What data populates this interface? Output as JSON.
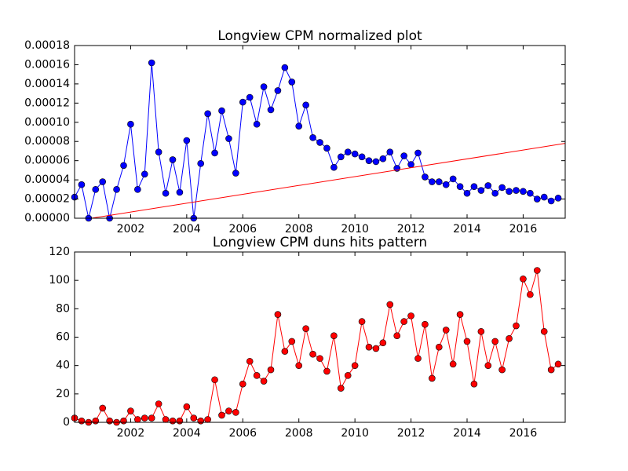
{
  "chart_data": [
    {
      "type": "line",
      "title": "Longview CPM normalized plot",
      "xlim": [
        2000,
        2017.5
      ],
      "xticks": [
        2002,
        2004,
        2006,
        2008,
        2010,
        2012,
        2014,
        2016
      ],
      "ylim": [
        0,
        0.00018
      ],
      "yticks": [
        {
          "value": 0,
          "label": "0.00000"
        },
        {
          "value": 2e-05,
          "label": "0.00002"
        },
        {
          "value": 4e-05,
          "label": "0.00004"
        },
        {
          "value": 6e-05,
          "label": "0.00006"
        },
        {
          "value": 8e-05,
          "label": "0.00008"
        },
        {
          "value": 0.0001,
          "label": "0.00010"
        },
        {
          "value": 0.00012,
          "label": "0.00012"
        },
        {
          "value": 0.00014,
          "label": "0.00014"
        },
        {
          "value": 0.00016,
          "label": "0.00016"
        },
        {
          "value": 0.00018,
          "label": "0.00018"
        }
      ],
      "series": [
        {
          "color": "#0000ff",
          "markers": true,
          "x": [
            2000,
            2000.25,
            2000.5,
            2000.75,
            2001,
            2001.25,
            2001.5,
            2001.75,
            2002,
            2002.25,
            2002.5,
            2002.75,
            2003,
            2003.25,
            2003.5,
            2003.75,
            2004,
            2004.25,
            2004.5,
            2004.75,
            2005,
            2005.25,
            2005.5,
            2005.75,
            2006,
            2006.25,
            2006.5,
            2006.75,
            2007,
            2007.25,
            2007.5,
            2007.75,
            2008,
            2008.25,
            2008.5,
            2008.75,
            2009,
            2009.25,
            2009.5,
            2009.75,
            2010,
            2010.25,
            2010.5,
            2010.75,
            2011,
            2011.25,
            2011.5,
            2011.75,
            2012,
            2012.25,
            2012.5,
            2012.75,
            2013,
            2013.25,
            2013.5,
            2013.75,
            2014,
            2014.25,
            2014.5,
            2014.75,
            2015,
            2015.25,
            2015.5,
            2015.75,
            2016,
            2016.25,
            2016.5,
            2016.75,
            2017,
            2017.25
          ],
          "values": [
            2.2e-05,
            3.5e-05,
            0,
            3e-05,
            3.8e-05,
            0,
            3e-05,
            5.5e-05,
            9.8e-05,
            3e-05,
            4.6e-05,
            0.000162,
            6.9e-05,
            2.6e-05,
            6.1e-05,
            2.7e-05,
            8.1e-05,
            0,
            5.7e-05,
            0.000109,
            6.8e-05,
            0.000112,
            8.3e-05,
            4.7e-05,
            0.000121,
            0.000126,
            9.8e-05,
            0.000137,
            0.000113,
            0.000133,
            0.000157,
            0.000142,
            9.6e-05,
            0.000118,
            8.4e-05,
            7.9e-05,
            7.3e-05,
            5.3e-05,
            6.4e-05,
            6.9e-05,
            6.7e-05,
            6.4e-05,
            6e-05,
            5.9e-05,
            6.2e-05,
            6.9e-05,
            5.2e-05,
            6.5e-05,
            5.6e-05,
            6.8e-05,
            4.3e-05,
            3.8e-05,
            3.8e-05,
            3.5e-05,
            4.1e-05,
            3.3e-05,
            2.6e-05,
            3.3e-05,
            2.9e-05,
            3.4e-05,
            2.6e-05,
            3.2e-05,
            2.8e-05,
            2.9e-05,
            2.8e-05,
            2.6e-05,
            2e-05,
            2.2e-05,
            1.8e-05,
            2.1e-05
          ]
        },
        {
          "color": "#ff0000",
          "markers": false,
          "x": [
            2000.6,
            2017.5
          ],
          "values": [
            0,
            7.8e-05
          ]
        }
      ]
    },
    {
      "type": "line",
      "title": "Longview CPM duns hits pattern",
      "xlim": [
        2000,
        2017.5
      ],
      "xticks": [
        2002,
        2004,
        2006,
        2008,
        2010,
        2012,
        2014,
        2016
      ],
      "ylim": [
        0,
        120
      ],
      "yticks": [
        0,
        20,
        40,
        60,
        80,
        100,
        120
      ],
      "series": [
        {
          "color": "#ff0000",
          "markers": true,
          "x": [
            2000,
            2000.25,
            2000.5,
            2000.75,
            2001,
            2001.25,
            2001.5,
            2001.75,
            2002,
            2002.25,
            2002.5,
            2002.75,
            2003,
            2003.25,
            2003.5,
            2003.75,
            2004,
            2004.25,
            2004.5,
            2004.75,
            2005,
            2005.25,
            2005.5,
            2005.75,
            2006,
            2006.25,
            2006.5,
            2006.75,
            2007,
            2007.25,
            2007.5,
            2007.75,
            2008,
            2008.25,
            2008.5,
            2008.75,
            2009,
            2009.25,
            2009.5,
            2009.75,
            2010,
            2010.25,
            2010.5,
            2010.75,
            2011,
            2011.25,
            2011.5,
            2011.75,
            2012,
            2012.25,
            2012.5,
            2012.75,
            2013,
            2013.25,
            2013.5,
            2013.75,
            2014,
            2014.25,
            2014.5,
            2014.75,
            2015,
            2015.25,
            2015.5,
            2015.75,
            2016,
            2016.25,
            2016.5,
            2016.75,
            2017,
            2017.25
          ],
          "values": [
            3,
            1,
            0,
            1,
            10,
            1,
            0,
            1,
            8,
            2,
            3,
            3,
            13,
            2,
            1,
            1,
            11,
            3,
            1,
            2,
            30,
            5,
            8,
            7,
            27,
            43,
            33,
            29,
            37,
            76,
            50,
            57,
            40,
            66,
            48,
            45,
            36,
            61,
            24,
            33,
            40,
            71,
            53,
            52,
            56,
            83,
            61,
            71,
            75,
            45,
            69,
            31,
            53,
            65,
            41,
            76,
            57,
            27,
            64,
            40,
            57,
            37,
            59,
            68,
            101,
            90,
            107,
            64,
            37,
            41
          ]
        }
      ]
    }
  ]
}
